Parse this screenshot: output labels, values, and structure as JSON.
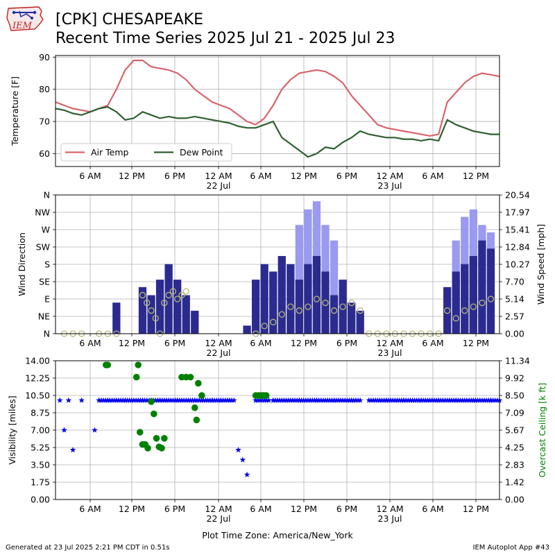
{
  "header": {
    "title_line1": "[CPK] CHESAPEAKE",
    "title_line2": "Recent Time Series 2025 Jul 21 - 2025 Jul 23",
    "logo_text": "IEM"
  },
  "footer": {
    "generated": "Generated at 23 Jul 2025 2:21 PM CDT in 0.51s",
    "app": "IEM Autoplot App #43",
    "timezone": "Plot Time Zone: America/New_York"
  },
  "colors": {
    "air_temp": "#d9636b",
    "dew_point": "#2e5e2e",
    "wind_speed": "#2b2b8f",
    "wind_gust": "#9a9af0",
    "wind_dir": "#b8b878",
    "visibility": "#0000ee",
    "ceiling": "#008000"
  },
  "chart_data": [
    {
      "type": "line",
      "title": "",
      "xlabel": "",
      "ylabel": "Temperature [F]",
      "x_ticks": [
        "6 AM",
        "12 PM",
        "6 PM",
        "12 AM\n22 Jul",
        "6 AM",
        "12 PM",
        "6 PM",
        "12 AM\n23 Jul",
        "6 AM",
        "12 PM"
      ],
      "y_ticks": [
        "60",
        "70",
        "80",
        "90"
      ],
      "ylim": [
        56,
        90.5
      ],
      "xlim_hours": [
        0,
        51
      ],
      "grid": true,
      "legend": "lower-left",
      "series": [
        {
          "name": "Air Temp",
          "x": [
            0,
            1,
            2,
            3,
            4,
            5,
            6,
            7,
            8,
            9,
            10,
            11,
            12,
            13,
            14,
            15,
            16,
            17,
            18,
            19,
            20,
            21,
            22,
            23,
            24,
            25,
            26,
            27,
            28,
            29,
            30,
            31,
            32,
            33,
            34,
            35,
            36,
            37,
            38,
            39,
            40,
            41,
            42,
            43,
            44,
            45,
            46,
            47,
            48,
            49,
            50,
            51
          ],
          "values": [
            76,
            75,
            74,
            73.5,
            73,
            74,
            75,
            80,
            86,
            89,
            89,
            87,
            86.5,
            86,
            85,
            83,
            80,
            78,
            76,
            75,
            74,
            72,
            70,
            69,
            71,
            75,
            80,
            83,
            85,
            85.5,
            86,
            85.5,
            84,
            82,
            78,
            75,
            72,
            69,
            68,
            67.5,
            67,
            66.5,
            66,
            65.5,
            66,
            76,
            79,
            82,
            84,
            85,
            84.5,
            84
          ]
        },
        {
          "name": "Dew Point",
          "x": [
            0,
            1,
            2,
            3,
            4,
            5,
            6,
            7,
            8,
            9,
            10,
            11,
            12,
            13,
            14,
            15,
            16,
            17,
            18,
            19,
            20,
            21,
            22,
            23,
            24,
            25,
            26,
            27,
            28,
            29,
            30,
            31,
            32,
            33,
            34,
            35,
            36,
            37,
            38,
            39,
            40,
            41,
            42,
            43,
            44,
            45,
            46,
            47,
            48,
            49,
            50,
            51
          ],
          "values": [
            74,
            73.5,
            72.5,
            72,
            73,
            74,
            74.5,
            73,
            70.5,
            71,
            73,
            72,
            71,
            71.5,
            71,
            71,
            71.5,
            71,
            70.5,
            70,
            69.5,
            68.5,
            68,
            68,
            69,
            70,
            65,
            63,
            61,
            59,
            60,
            62,
            61.5,
            63.5,
            65,
            67,
            66,
            65.5,
            65,
            65,
            64.5,
            64.5,
            64,
            64.5,
            64,
            70.5,
            69,
            68,
            67,
            66.5,
            66,
            66
          ]
        }
      ]
    },
    {
      "type": "bar",
      "title": "",
      "xlabel": "",
      "ylabel": "Wind Direction",
      "ylabel_right": "Wind Speed [mph]",
      "x_ticks": [
        "6 AM",
        "12 PM",
        "6 PM",
        "12 AM\n22 Jul",
        "6 AM",
        "12 PM",
        "6 PM",
        "12 AM\n23 Jul",
        "6 AM",
        "12 PM"
      ],
      "y_ticks_left": [
        "N",
        "NE",
        "E",
        "SE",
        "S",
        "SW",
        "W",
        "NW",
        "N"
      ],
      "y_ticks_right": [
        "0.00",
        "2.57",
        "5.14",
        "7.70",
        "10.27",
        "12.84",
        "15.41",
        "17.97",
        "20.54"
      ],
      "ylim_left": [
        0,
        360
      ],
      "ylim_right": [
        0,
        20.54
      ],
      "grid": true,
      "series": [
        {
          "name": "Wind Speed",
          "x": [
            7,
            10,
            11,
            12,
            13,
            14,
            15,
            16,
            22,
            23,
            24,
            25,
            26,
            27,
            28,
            29,
            30,
            31,
            32,
            33,
            34,
            35,
            36,
            37,
            38,
            39,
            40,
            41,
            45,
            46,
            47,
            48,
            49,
            50
          ],
          "values": [
            4.6,
            6.9,
            5.7,
            8.0,
            10.3,
            8.0,
            5.7,
            3.4,
            1.2,
            8.0,
            10.3,
            9.2,
            11.5,
            10.3,
            8.0,
            10.3,
            11.5,
            9.2,
            5.7,
            8.0,
            4.6,
            3.4,
            0.0,
            0.0,
            0.0,
            0.0,
            0.0,
            0.0,
            6.9,
            9.2,
            10.3,
            11.5,
            13.8,
            12.6
          ]
        },
        {
          "name": "Wind Gust",
          "x": [
            28,
            29,
            30,
            31,
            32,
            46,
            47,
            48,
            49,
            50
          ],
          "values": [
            16.1,
            18.4,
            19.6,
            16.1,
            13.8,
            13.8,
            17.3,
            18.4,
            16.1,
            15.0
          ]
        },
        {
          "name": "Wind Direction",
          "x": [
            1,
            2,
            3,
            5,
            6,
            7,
            10,
            10.5,
            11,
            11.5,
            12,
            12.5,
            13,
            13.5,
            14,
            14.5,
            15,
            23,
            24,
            25,
            26,
            27,
            28,
            29,
            30,
            31,
            32,
            33,
            34,
            35,
            36,
            37,
            38,
            39,
            40,
            41,
            42,
            43,
            44,
            45,
            46,
            47,
            48,
            49,
            50
          ],
          "values": [
            0,
            0,
            0,
            0,
            0,
            0,
            100,
            80,
            60,
            40,
            0,
            80,
            100,
            110,
            90,
            100,
            110,
            0,
            20,
            30,
            50,
            70,
            60,
            70,
            90,
            80,
            60,
            70,
            80,
            60,
            0,
            0,
            0,
            0,
            0,
            0,
            0,
            0,
            0,
            60,
            40,
            60,
            70,
            80,
            90
          ]
        }
      ]
    },
    {
      "type": "scatter",
      "title": "",
      "xlabel": "Plot Time Zone: America/New_York",
      "ylabel": "Visibility [miles]",
      "ylabel_right": "Overcast Ceiling [k ft]",
      "x_ticks": [
        "6 AM",
        "12 PM",
        "6 PM",
        "12 AM\n22 Jul",
        "6 AM",
        "12 PM",
        "6 PM",
        "12 AM\n23 Jul",
        "6 AM",
        "12 PM"
      ],
      "y_ticks_left": [
        "0.00",
        "1.75",
        "3.50",
        "5.25",
        "7.00",
        "8.75",
        "10.50",
        "12.25",
        "14.00"
      ],
      "y_ticks_right": [
        "0.00",
        "1.42",
        "2.83",
        "4.25",
        "5.67",
        "7.09",
        "8.50",
        "9.92",
        "11.34"
      ],
      "ylim_left": [
        0,
        14
      ],
      "ylim_right": [
        0,
        11.34
      ],
      "grid": true,
      "series": [
        {
          "name": "Visibility",
          "x": [
            0.5,
            1,
            1.5,
            2,
            3,
            4.5,
            5,
            6,
            8,
            10,
            12,
            14,
            16,
            18,
            19,
            20,
            21,
            21.5,
            22,
            23,
            25,
            28,
            30,
            32,
            34,
            36,
            38,
            40,
            42,
            44,
            46,
            48,
            50
          ],
          "values": [
            10,
            7,
            10,
            5,
            10,
            7,
            10,
            10,
            10,
            10,
            10,
            10,
            10,
            10,
            10,
            10,
            5,
            4,
            2.5,
            10,
            10,
            10,
            10,
            10,
            10,
            10,
            10,
            10,
            10,
            10,
            10,
            10,
            10
          ]
        },
        {
          "name": "Overcast Ceiling",
          "x": [
            5.8,
            6,
            9.3,
            9.5,
            9.7,
            10,
            10.3,
            10.6,
            11,
            11.3,
            11.6,
            11.9,
            12.2,
            12.5,
            14.5,
            15,
            15.5,
            16,
            16.2,
            16.4,
            16.8,
            23,
            23.3,
            23.6,
            23.9,
            24.2
          ],
          "values": [
            11,
            11,
            10,
            11,
            5.5,
            4.5,
            4.5,
            4.2,
            8,
            7,
            5,
            4.3,
            4.2,
            5,
            10,
            10,
            10,
            7.5,
            6.5,
            9.5,
            8.5,
            8.5,
            8.5,
            8.5,
            8.5,
            8.5
          ]
        }
      ]
    }
  ]
}
